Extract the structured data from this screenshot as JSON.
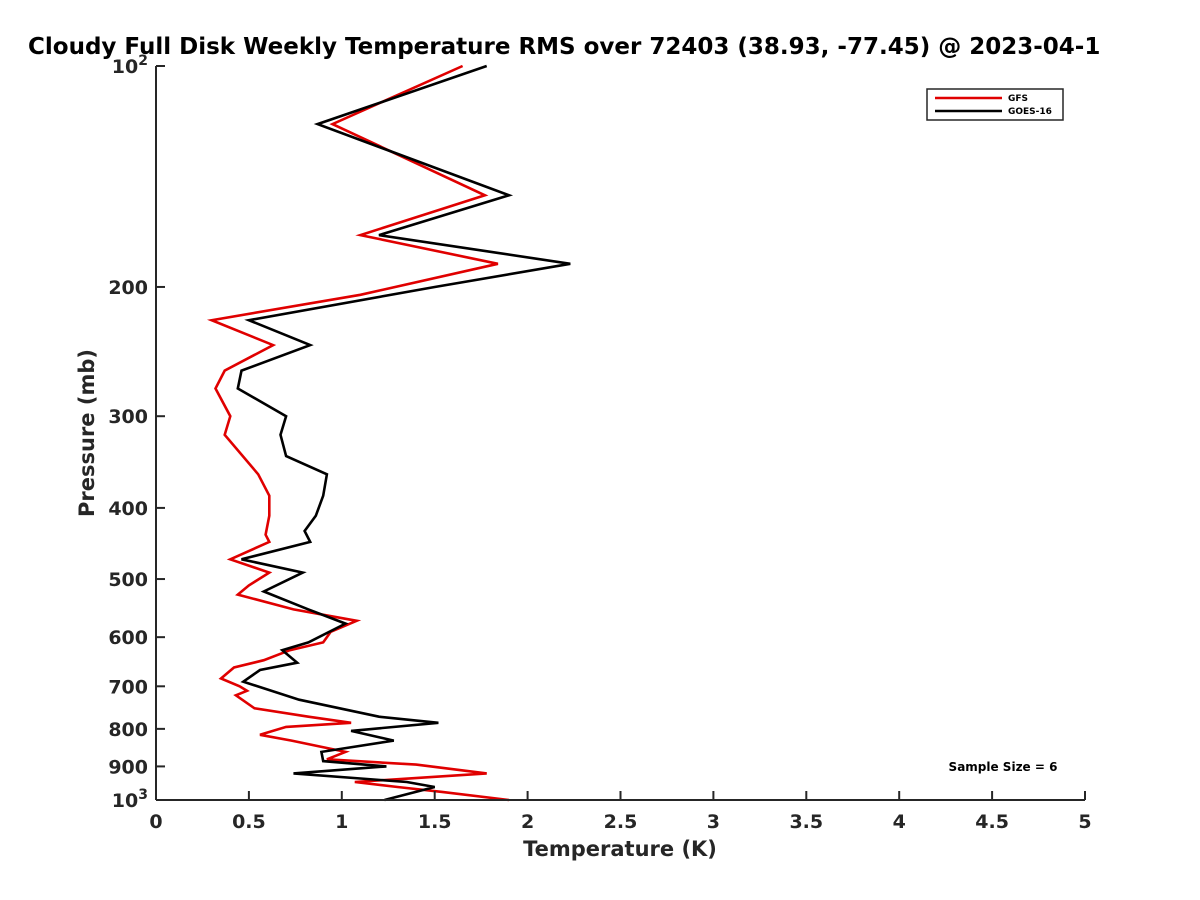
{
  "chart_data": {
    "type": "line",
    "title": "Cloudy Full Disk Weekly Temperature RMS over 72403 (38.93, -77.45) @ 2023-04-1",
    "xlabel": "Temperature (K)",
    "ylabel": "Pressure (mb)",
    "xlim": [
      0,
      5
    ],
    "ylim": [
      100,
      1000
    ],
    "y_scale": "log",
    "y_reversed": true,
    "grid": false,
    "legend_position": "top-right",
    "x_ticks": [
      0,
      0.5,
      1,
      1.5,
      2,
      2.5,
      3,
      3.5,
      4,
      4.5,
      5
    ],
    "x_tick_labels": [
      "0",
      "0.5",
      "1",
      "1.5",
      "2",
      "2.5",
      "3",
      "3.5",
      "4",
      "4.5",
      "5"
    ],
    "y_ticks": [
      100,
      200,
      300,
      400,
      500,
      600,
      700,
      800,
      900,
      1000
    ],
    "y_tick_labels": [
      {
        "base": "10",
        "exp": "2"
      },
      {
        "base": "200",
        "exp": ""
      },
      {
        "base": "300",
        "exp": ""
      },
      {
        "base": "400",
        "exp": ""
      },
      {
        "base": "500",
        "exp": ""
      },
      {
        "base": "600",
        "exp": ""
      },
      {
        "base": "700",
        "exp": ""
      },
      {
        "base": "800",
        "exp": ""
      },
      {
        "base": "900",
        "exp": ""
      },
      {
        "base": "10",
        "exp": "3"
      }
    ],
    "annotation": "Sample Size = 6",
    "series": [
      {
        "name": "GFS",
        "color": "#e00000",
        "points": [
          [
            1.65,
            100
          ],
          [
            0.95,
            120
          ],
          [
            1.77,
            150
          ],
          [
            1.1,
            170
          ],
          [
            1.84,
            186
          ],
          [
            1.1,
            205
          ],
          [
            0.3,
            222
          ],
          [
            0.63,
            240
          ],
          [
            0.37,
            260
          ],
          [
            0.32,
            275
          ],
          [
            0.4,
            300
          ],
          [
            0.37,
            318
          ],
          [
            0.55,
            360
          ],
          [
            0.61,
            385
          ],
          [
            0.61,
            410
          ],
          [
            0.59,
            435
          ],
          [
            0.61,
            445
          ],
          [
            0.4,
            470
          ],
          [
            0.61,
            490
          ],
          [
            0.5,
            510
          ],
          [
            0.44,
            525
          ],
          [
            0.74,
            550
          ],
          [
            1.08,
            570
          ],
          [
            0.94,
            590
          ],
          [
            0.9,
            610
          ],
          [
            0.72,
            625
          ],
          [
            0.58,
            645
          ],
          [
            0.42,
            660
          ],
          [
            0.35,
            683
          ],
          [
            0.45,
            700
          ],
          [
            0.49,
            710
          ],
          [
            0.43,
            720
          ],
          [
            0.53,
            750
          ],
          [
            0.82,
            770
          ],
          [
            1.05,
            785
          ],
          [
            0.7,
            795
          ],
          [
            0.56,
            815
          ],
          [
            0.73,
            830
          ],
          [
            1.02,
            860
          ],
          [
            0.92,
            880
          ],
          [
            1.4,
            895
          ],
          [
            1.78,
            920
          ],
          [
            1.07,
            945
          ],
          [
            1.3,
            960
          ],
          [
            1.54,
            975
          ],
          [
            1.9,
            1000
          ]
        ]
      },
      {
        "name": "GOES-16",
        "color": "#000000",
        "points": [
          [
            1.78,
            100
          ],
          [
            0.87,
            120
          ],
          [
            1.9,
            150
          ],
          [
            1.2,
            170
          ],
          [
            2.23,
            186
          ],
          [
            1.5,
            200
          ],
          [
            0.5,
            222
          ],
          [
            0.83,
            240
          ],
          [
            0.46,
            260
          ],
          [
            0.44,
            275
          ],
          [
            0.7,
            300
          ],
          [
            0.67,
            318
          ],
          [
            0.7,
            340
          ],
          [
            0.92,
            360
          ],
          [
            0.9,
            385
          ],
          [
            0.86,
            410
          ],
          [
            0.8,
            430
          ],
          [
            0.83,
            445
          ],
          [
            0.46,
            470
          ],
          [
            0.79,
            490
          ],
          [
            0.58,
            520
          ],
          [
            0.82,
            550
          ],
          [
            1.02,
            575
          ],
          [
            0.82,
            610
          ],
          [
            0.68,
            625
          ],
          [
            0.76,
            650
          ],
          [
            0.56,
            665
          ],
          [
            0.47,
            690
          ],
          [
            0.77,
            730
          ],
          [
            1.2,
            770
          ],
          [
            1.52,
            785
          ],
          [
            1.05,
            805
          ],
          [
            1.28,
            830
          ],
          [
            0.89,
            860
          ],
          [
            0.9,
            885
          ],
          [
            1.24,
            900
          ],
          [
            0.74,
            920
          ],
          [
            1.35,
            945
          ],
          [
            1.5,
            960
          ],
          [
            1.23,
            1000
          ]
        ]
      }
    ]
  }
}
